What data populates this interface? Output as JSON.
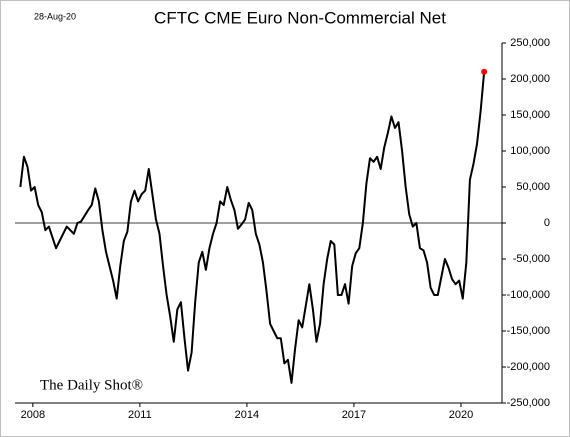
{
  "chart_data": {
    "type": "line",
    "title": "CFTC CME Euro Non-Commercial Net",
    "date_label": "28-Aug-20",
    "source": "The Daily Shot®",
    "x": [
      2007.65,
      2007.75,
      2007.85,
      2007.95,
      2008.05,
      2008.15,
      2008.25,
      2008.35,
      2008.45,
      2008.55,
      2008.65,
      2008.75,
      2008.85,
      2008.95,
      2009.05,
      2009.15,
      2009.25,
      2009.35,
      2009.45,
      2009.55,
      2009.65,
      2009.75,
      2009.85,
      2009.95,
      2010.05,
      2010.15,
      2010.25,
      2010.35,
      2010.45,
      2010.55,
      2010.65,
      2010.75,
      2010.85,
      2010.95,
      2011.05,
      2011.15,
      2011.25,
      2011.35,
      2011.45,
      2011.55,
      2011.65,
      2011.75,
      2011.85,
      2011.95,
      2012.05,
      2012.15,
      2012.25,
      2012.35,
      2012.45,
      2012.55,
      2012.65,
      2012.75,
      2012.85,
      2012.95,
      2013.05,
      2013.15,
      2013.25,
      2013.35,
      2013.45,
      2013.55,
      2013.65,
      2013.75,
      2013.85,
      2013.95,
      2014.05,
      2014.15,
      2014.25,
      2014.35,
      2014.45,
      2014.55,
      2014.65,
      2014.75,
      2014.85,
      2014.95,
      2015.05,
      2015.15,
      2015.25,
      2015.35,
      2015.45,
      2015.55,
      2015.65,
      2015.75,
      2015.85,
      2015.95,
      2016.05,
      2016.15,
      2016.25,
      2016.35,
      2016.45,
      2016.55,
      2016.65,
      2016.75,
      2016.85,
      2016.95,
      2017.05,
      2017.15,
      2017.25,
      2017.35,
      2017.45,
      2017.55,
      2017.65,
      2017.75,
      2017.85,
      2017.95,
      2018.05,
      2018.15,
      2018.25,
      2018.35,
      2018.45,
      2018.55,
      2018.65,
      2018.75,
      2018.85,
      2018.95,
      2019.05,
      2019.15,
      2019.25,
      2019.35,
      2019.45,
      2019.55,
      2019.65,
      2019.75,
      2019.85,
      2019.95,
      2020.05,
      2020.15,
      2020.25,
      2020.35,
      2020.45,
      2020.55,
      2020.65
    ],
    "series": [
      {
        "color": "#000000",
        "values": [
          50000,
          92000,
          78000,
          45000,
          50000,
          25000,
          15000,
          -10000,
          -5000,
          -20000,
          -35000,
          -25000,
          -15000,
          -5000,
          -10000,
          -15000,
          0,
          2000,
          10000,
          18000,
          25000,
          48000,
          30000,
          -10000,
          -40000,
          -60000,
          -80000,
          -105000,
          -60000,
          -25000,
          -12000,
          30000,
          45000,
          30000,
          40000,
          45000,
          75000,
          40000,
          5000,
          -15000,
          -60000,
          -100000,
          -130000,
          -165000,
          -120000,
          -110000,
          -160000,
          -205000,
          -180000,
          -110000,
          -55000,
          -40000,
          -65000,
          -35000,
          -15000,
          0,
          30000,
          25000,
          50000,
          32000,
          18000,
          -8000,
          -2000,
          5000,
          28000,
          18000,
          -15000,
          -30000,
          -55000,
          -95000,
          -140000,
          -150000,
          -160000,
          -160000,
          -195000,
          -190000,
          -222000,
          -175000,
          -135000,
          -145000,
          -115000,
          -85000,
          -120000,
          -165000,
          -140000,
          -85000,
          -50000,
          -25000,
          -30000,
          -100000,
          -100000,
          -85000,
          -112000,
          -60000,
          -42000,
          -35000,
          0,
          55000,
          90000,
          85000,
          92000,
          75000,
          105000,
          125000,
          148000,
          132000,
          140000,
          100000,
          50000,
          12000,
          -5000,
          0,
          -35000,
          -38000,
          -55000,
          -90000,
          -100000,
          -100000,
          -75000,
          -50000,
          -62000,
          -78000,
          -85000,
          -80000,
          -105000,
          -55000,
          60000,
          82000,
          110000,
          155000,
          210000
        ]
      }
    ],
    "last_point_color": "#ff0000",
    "xlim": [
      2007.5,
      2021.15
    ],
    "xticks": [
      2008,
      2011,
      2014,
      2017,
      2020
    ],
    "ylim": [
      -250000,
      250000
    ],
    "yticks": [
      {
        "value": -250000,
        "label": "-250,000"
      },
      {
        "value": -200000,
        "label": "-200,000"
      },
      {
        "value": -150000,
        "label": "-150,000"
      },
      {
        "value": -100000,
        "label": "-100,000"
      },
      {
        "value": -50000,
        "label": "-50,000"
      },
      0,
      {
        "value": 50000,
        "label": "50,000"
      },
      {
        "value": 100000,
        "label": "100,000"
      },
      {
        "value": 150000,
        "label": "150,000"
      },
      {
        "value": 200000,
        "label": "200,000"
      },
      {
        "value": 250000,
        "label": "250,000"
      }
    ],
    "zero_line": true
  }
}
